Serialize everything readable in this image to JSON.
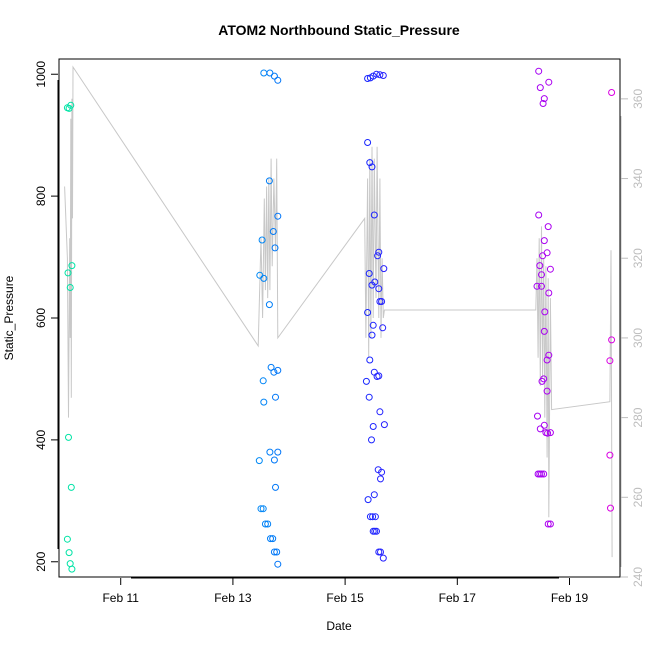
{
  "chart_data": {
    "type": "scatter",
    "title": "ATOM2 Northbound Static_Pressure",
    "xlabel": "Date",
    "ylabel": "Static_Pressure",
    "x_ticks": [
      "Feb 11",
      "Feb 13",
      "Feb 15",
      "Feb 17",
      "Feb 19"
    ],
    "x_tick_values": [
      11,
      13,
      15,
      17,
      19
    ],
    "xlim": [
      9.9,
      19.9
    ],
    "ylim": [
      175,
      1025
    ],
    "y_ticks": [
      200,
      400,
      600,
      800,
      1000
    ],
    "y2lim": [
      240,
      370
    ],
    "y2_ticks": [
      240,
      260,
      280,
      300,
      320,
      340,
      360
    ],
    "grid": false,
    "legend": "none",
    "colors": {
      "points_gradient": [
        "#00e5a0",
        "#00ccee",
        "#0030ff",
        "#7a00ff",
        "#e000e0"
      ],
      "line": "#c8c8c8",
      "right_axis": "#bdbdbd"
    },
    "point_series": [
      {
        "x": 10.05,
        "y": 237
      },
      {
        "x": 10.08,
        "y": 215
      },
      {
        "x": 10.1,
        "y": 197
      },
      {
        "x": 10.13,
        "y": 188
      },
      {
        "x": 10.07,
        "y": 404
      },
      {
        "x": 10.12,
        "y": 322
      },
      {
        "x": 10.06,
        "y": 674
      },
      {
        "x": 10.1,
        "y": 650
      },
      {
        "x": 10.13,
        "y": 686
      },
      {
        "x": 10.05,
        "y": 945
      },
      {
        "x": 10.08,
        "y": 944
      },
      {
        "x": 10.11,
        "y": 949
      },
      {
        "x": 13.48,
        "y": 670
      },
      {
        "x": 13.55,
        "y": 665
      },
      {
        "x": 13.52,
        "y": 728
      },
      {
        "x": 13.65,
        "y": 825
      },
      {
        "x": 13.72,
        "y": 742
      },
      {
        "x": 13.8,
        "y": 767
      },
      {
        "x": 13.75,
        "y": 715
      },
      {
        "x": 13.65,
        "y": 622
      },
      {
        "x": 13.54,
        "y": 497
      },
      {
        "x": 13.55,
        "y": 462
      },
      {
        "x": 13.68,
        "y": 519
      },
      {
        "x": 13.73,
        "y": 511
      },
      {
        "x": 13.8,
        "y": 514
      },
      {
        "x": 13.76,
        "y": 470
      },
      {
        "x": 13.66,
        "y": 380
      },
      {
        "x": 13.74,
        "y": 367
      },
      {
        "x": 13.8,
        "y": 380
      },
      {
        "x": 13.47,
        "y": 366
      },
      {
        "x": 13.76,
        "y": 322
      },
      {
        "x": 13.5,
        "y": 287
      },
      {
        "x": 13.54,
        "y": 287
      },
      {
        "x": 13.58,
        "y": 262
      },
      {
        "x": 13.62,
        "y": 262
      },
      {
        "x": 13.67,
        "y": 238
      },
      {
        "x": 13.71,
        "y": 238
      },
      {
        "x": 13.74,
        "y": 216
      },
      {
        "x": 13.78,
        "y": 216
      },
      {
        "x": 13.8,
        "y": 196
      },
      {
        "x": 13.55,
        "y": 1002
      },
      {
        "x": 13.66,
        "y": 1002
      },
      {
        "x": 13.74,
        "y": 997
      },
      {
        "x": 13.8,
        "y": 990
      },
      {
        "x": 15.4,
        "y": 993
      },
      {
        "x": 15.45,
        "y": 994
      },
      {
        "x": 15.5,
        "y": 997
      },
      {
        "x": 15.56,
        "y": 1000
      },
      {
        "x": 15.62,
        "y": 999
      },
      {
        "x": 15.68,
        "y": 998
      },
      {
        "x": 15.4,
        "y": 888
      },
      {
        "x": 15.44,
        "y": 855
      },
      {
        "x": 15.48,
        "y": 848
      },
      {
        "x": 15.52,
        "y": 769
      },
      {
        "x": 15.58,
        "y": 702
      },
      {
        "x": 15.6,
        "y": 708
      },
      {
        "x": 15.69,
        "y": 681
      },
      {
        "x": 15.43,
        "y": 673
      },
      {
        "x": 15.48,
        "y": 654
      },
      {
        "x": 15.53,
        "y": 659
      },
      {
        "x": 15.6,
        "y": 648
      },
      {
        "x": 15.62,
        "y": 627
      },
      {
        "x": 15.65,
        "y": 627
      },
      {
        "x": 15.4,
        "y": 609
      },
      {
        "x": 15.5,
        "y": 588
      },
      {
        "x": 15.48,
        "y": 572
      },
      {
        "x": 15.67,
        "y": 584
      },
      {
        "x": 15.44,
        "y": 531
      },
      {
        "x": 15.52,
        "y": 511
      },
      {
        "x": 15.57,
        "y": 504
      },
      {
        "x": 15.6,
        "y": 505
      },
      {
        "x": 15.38,
        "y": 496
      },
      {
        "x": 15.43,
        "y": 470
      },
      {
        "x": 15.62,
        "y": 446
      },
      {
        "x": 15.5,
        "y": 422
      },
      {
        "x": 15.7,
        "y": 425
      },
      {
        "x": 15.47,
        "y": 400
      },
      {
        "x": 15.59,
        "y": 351
      },
      {
        "x": 15.65,
        "y": 347
      },
      {
        "x": 15.63,
        "y": 336
      },
      {
        "x": 15.52,
        "y": 310
      },
      {
        "x": 15.41,
        "y": 302
      },
      {
        "x": 15.45,
        "y": 274
      },
      {
        "x": 15.49,
        "y": 274
      },
      {
        "x": 15.54,
        "y": 274
      },
      {
        "x": 15.5,
        "y": 250
      },
      {
        "x": 15.53,
        "y": 250
      },
      {
        "x": 15.56,
        "y": 250
      },
      {
        "x": 15.6,
        "y": 216
      },
      {
        "x": 15.63,
        "y": 216
      },
      {
        "x": 15.68,
        "y": 206
      },
      {
        "x": 18.45,
        "y": 1005
      },
      {
        "x": 18.48,
        "y": 978
      },
      {
        "x": 18.55,
        "y": 960
      },
      {
        "x": 18.53,
        "y": 952
      },
      {
        "x": 18.63,
        "y": 987
      },
      {
        "x": 18.45,
        "y": 769
      },
      {
        "x": 18.62,
        "y": 750
      },
      {
        "x": 18.55,
        "y": 727
      },
      {
        "x": 18.6,
        "y": 707
      },
      {
        "x": 18.52,
        "y": 702
      },
      {
        "x": 18.47,
        "y": 686
      },
      {
        "x": 18.5,
        "y": 671
      },
      {
        "x": 18.66,
        "y": 680
      },
      {
        "x": 18.42,
        "y": 652
      },
      {
        "x": 18.5,
        "y": 652
      },
      {
        "x": 18.63,
        "y": 641
      },
      {
        "x": 18.56,
        "y": 610
      },
      {
        "x": 18.55,
        "y": 578
      },
      {
        "x": 18.63,
        "y": 539
      },
      {
        "x": 18.6,
        "y": 531
      },
      {
        "x": 18.54,
        "y": 500
      },
      {
        "x": 18.51,
        "y": 496
      },
      {
        "x": 18.6,
        "y": 480
      },
      {
        "x": 18.43,
        "y": 439
      },
      {
        "x": 18.48,
        "y": 418
      },
      {
        "x": 18.55,
        "y": 424
      },
      {
        "x": 18.58,
        "y": 412
      },
      {
        "x": 18.61,
        "y": 411
      },
      {
        "x": 18.66,
        "y": 412
      },
      {
        "x": 18.44,
        "y": 344
      },
      {
        "x": 18.47,
        "y": 344
      },
      {
        "x": 18.5,
        "y": 344
      },
      {
        "x": 18.54,
        "y": 344
      },
      {
        "x": 18.62,
        "y": 262
      },
      {
        "x": 18.66,
        "y": 262
      },
      {
        "x": 19.75,
        "y": 970
      },
      {
        "x": 19.75,
        "y": 564
      },
      {
        "x": 19.72,
        "y": 530
      },
      {
        "x": 19.72,
        "y": 375
      },
      {
        "x": 19.73,
        "y": 288
      }
    ],
    "line_series": {
      "axis": "right",
      "points": [
        [
          10.0,
          338
        ],
        [
          10.05,
          320
        ],
        [
          10.07,
          280
        ],
        [
          10.09,
          325
        ],
        [
          10.1,
          300
        ],
        [
          10.11,
          355
        ],
        [
          10.12,
          285
        ],
        [
          10.13,
          360
        ],
        [
          10.14,
          330
        ],
        [
          10.15,
          368
        ],
        [
          13.45,
          298
        ],
        [
          13.5,
          325
        ],
        [
          13.53,
          305
        ],
        [
          13.56,
          335
        ],
        [
          13.58,
          312
        ],
        [
          13.6,
          338
        ],
        [
          13.62,
          310
        ],
        [
          13.64,
          340
        ],
        [
          13.66,
          312
        ],
        [
          13.68,
          345
        ],
        [
          13.7,
          318
        ],
        [
          13.73,
          340
        ],
        [
          13.76,
          322
        ],
        [
          13.78,
          345
        ],
        [
          13.8,
          300
        ],
        [
          15.35,
          330
        ],
        [
          15.37,
          300
        ],
        [
          15.4,
          340
        ],
        [
          15.42,
          295
        ],
        [
          15.44,
          345
        ],
        [
          15.46,
          300
        ],
        [
          15.48,
          348
        ],
        [
          15.5,
          305
        ],
        [
          15.52,
          345
        ],
        [
          15.55,
          310
        ],
        [
          15.57,
          348
        ],
        [
          15.6,
          305
        ],
        [
          15.62,
          340
        ],
        [
          15.64,
          300
        ],
        [
          15.66,
          320
        ],
        [
          15.68,
          305
        ],
        [
          15.7,
          307
        ],
        [
          18.4,
          307
        ],
        [
          18.42,
          320
        ],
        [
          18.44,
          295
        ],
        [
          18.46,
          325
        ],
        [
          18.48,
          288
        ],
        [
          18.5,
          328
        ],
        [
          18.52,
          290
        ],
        [
          18.54,
          320
        ],
        [
          18.56,
          280
        ],
        [
          18.58,
          318
        ],
        [
          18.6,
          270
        ],
        [
          18.62,
          315
        ],
        [
          18.63,
          255
        ],
        [
          18.66,
          310
        ],
        [
          18.68,
          282
        ],
        [
          19.72,
          284
        ],
        [
          19.74,
          322
        ],
        [
          19.76,
          245
        ]
      ]
    }
  }
}
